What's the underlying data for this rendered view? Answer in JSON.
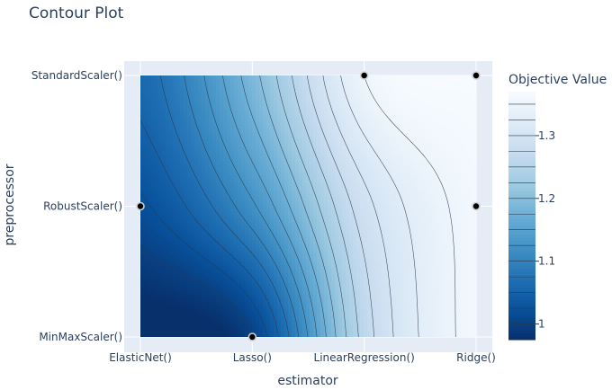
{
  "chart_data": {
    "type": "contour",
    "title": "Contour Plot",
    "xlabel": "estimator",
    "ylabel": "preprocessor",
    "x_categories": [
      "ElasticNet()",
      "Lasso()",
      "LinearRegression()",
      "Ridge()"
    ],
    "y_categories": [
      "MinMaxScaler()",
      "RobustScaler()",
      "StandardScaler()"
    ],
    "z_grid": [
      [
        0.96,
        1.0,
        1.26,
        1.36
      ],
      [
        1.02,
        1.12,
        1.29,
        1.36
      ],
      [
        1.06,
        1.19,
        1.35,
        1.37
      ]
    ],
    "trials": [
      {
        "x": "LinearRegression()",
        "y": "StandardScaler()"
      },
      {
        "x": "Ridge()",
        "y": "StandardScaler()"
      },
      {
        "x": "ElasticNet()",
        "y": "RobustScaler()"
      },
      {
        "x": "Ridge()",
        "y": "RobustScaler()"
      },
      {
        "x": "Lasso()",
        "y": "MinMaxScaler()"
      }
    ],
    "colorbar": {
      "title": "Objective Value",
      "colorscale": "Blues (reversed)",
      "range": [
        0.975,
        1.37
      ],
      "ticks": [
        1,
        1.1,
        1.2,
        1.3
      ],
      "tick_labels": [
        "1",
        "1.1",
        "1.2",
        "1.3"
      ]
    },
    "grid": true,
    "plot_background": "#e5ecf6"
  }
}
